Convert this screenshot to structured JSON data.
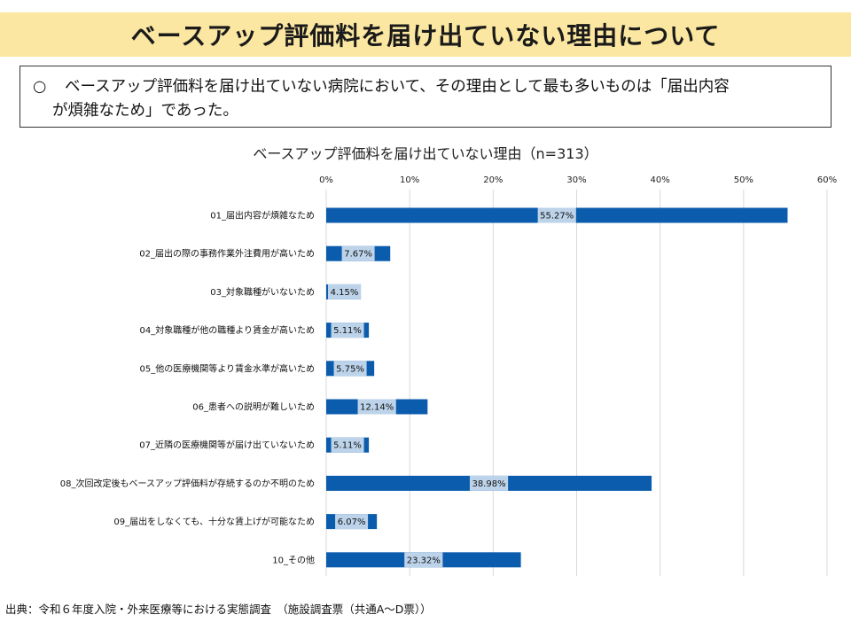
{
  "title": "ベースアップ評価料を届け出ていない理由について",
  "summary": {
    "bullet": "○",
    "line1": "ベースアップ評価料を届け出ていない病院において、その理由として最も多いものは「届出内容",
    "line2": "が煩雑なため」であった。"
  },
  "source": "出典：令和６年度入院・外来医療等における実態調査　（施設調査票（共通A～D票））",
  "chart_data": {
    "type": "bar",
    "orientation": "horizontal",
    "title": "ベースアップ評価料を届け出ていない理由（n=313）",
    "categories": [
      "01_届出内容が煩雑なため",
      "02_届出の際の事務作業外注費用が高いため",
      "03_対象職種がいないため",
      "04_対象職種が他の職種より賃金が高いため",
      "05_他の医療機関等より賃金水準が高いため",
      "06_患者への説明が難しいため",
      "07_近隣の医療機関等が届け出ていないため",
      "08_次回改定後もベースアップ評価料が存続するのか不明のため",
      "09_届出をしなくても、十分な賃上げが可能なため",
      "10_その他"
    ],
    "values": [
      55.27,
      7.67,
      4.15,
      5.11,
      5.75,
      12.14,
      5.11,
      38.98,
      6.07,
      23.32
    ],
    "data_labels": [
      "55.27%",
      "7.67%",
      "4.15%",
      "5.11%",
      "5.75%",
      "12.14%",
      "5.11%",
      "38.98%",
      "6.07%",
      "23.32%"
    ],
    "xlim": [
      0,
      60
    ],
    "x_ticks": [
      "0%",
      "10%",
      "20%",
      "30%",
      "40%",
      "50%",
      "60%"
    ],
    "x_axis_position": "top",
    "grid": true,
    "bar_color": "#0b5cad",
    "label_bg_color": "#bcd3ea",
    "grid_color": "#d9d9d9"
  }
}
